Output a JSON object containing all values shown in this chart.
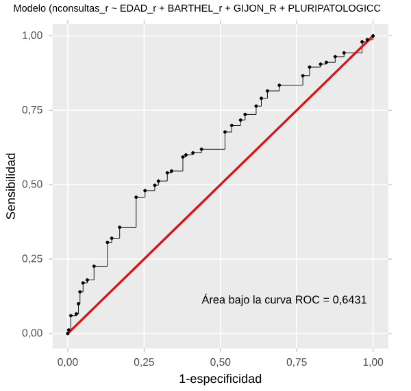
{
  "chart_data": {
    "type": "step",
    "title": "Modelo (nconsultas_r ~ EDAD_r + BARTHEL_r + GIJON_R + PLURIPATOLOGICC",
    "xlabel": "1-especificidad",
    "ylabel": "Sensibilidad",
    "xlim": [
      -0.05,
      1.05
    ],
    "ylim": [
      -0.05,
      1.04
    ],
    "xticks": [
      {
        "value": 0,
        "label": "0,00"
      },
      {
        "value": 0.25,
        "label": "0,25"
      },
      {
        "value": 0.5,
        "label": "0,50"
      },
      {
        "value": 0.75,
        "label": "0,75"
      },
      {
        "value": 1,
        "label": "1,00"
      }
    ],
    "yticks": [
      {
        "value": 0,
        "label": "0,00"
      },
      {
        "value": 0.25,
        "label": "0,25"
      },
      {
        "value": 0.5,
        "label": "0,50"
      },
      {
        "value": 0.75,
        "label": "0,75"
      },
      {
        "value": 1,
        "label": "1,00"
      }
    ],
    "grid": true,
    "series": [
      {
        "color": "#000000",
        "marker": "circle",
        "x": [
          0,
          0.003,
          0.01,
          0.028,
          0.035,
          0.04,
          0.05,
          0.064,
          0.086,
          0.13,
          0.144,
          0.17,
          0.224,
          0.253,
          0.285,
          0.297,
          0.326,
          0.34,
          0.377,
          0.387,
          0.41,
          0.438,
          0.515,
          0.537,
          0.566,
          0.581,
          0.617,
          0.634,
          0.654,
          0.693,
          0.77,
          0.792,
          0.828,
          0.847,
          0.876,
          0.905,
          0.964,
          0.981,
          1
        ],
        "values": [
          0,
          0.012,
          0.06,
          0.066,
          0.1,
          0.14,
          0.17,
          0.18,
          0.226,
          0.306,
          0.32,
          0.357,
          0.458,
          0.48,
          0.498,
          0.512,
          0.54,
          0.546,
          0.593,
          0.6,
          0.607,
          0.619,
          0.677,
          0.699,
          0.717,
          0.736,
          0.764,
          0.79,
          0.815,
          0.834,
          0.866,
          0.895,
          0.905,
          0.911,
          0.93,
          0.943,
          0.98,
          0.987,
          1
        ]
      },
      {
        "type": "line",
        "color": "#dd1111",
        "marker": "none",
        "x": [
          0,
          1
        ],
        "values": [
          0,
          1
        ]
      }
    ],
    "annotations": [
      "Área bajo la curva ROC = 0,6431"
    ]
  }
}
